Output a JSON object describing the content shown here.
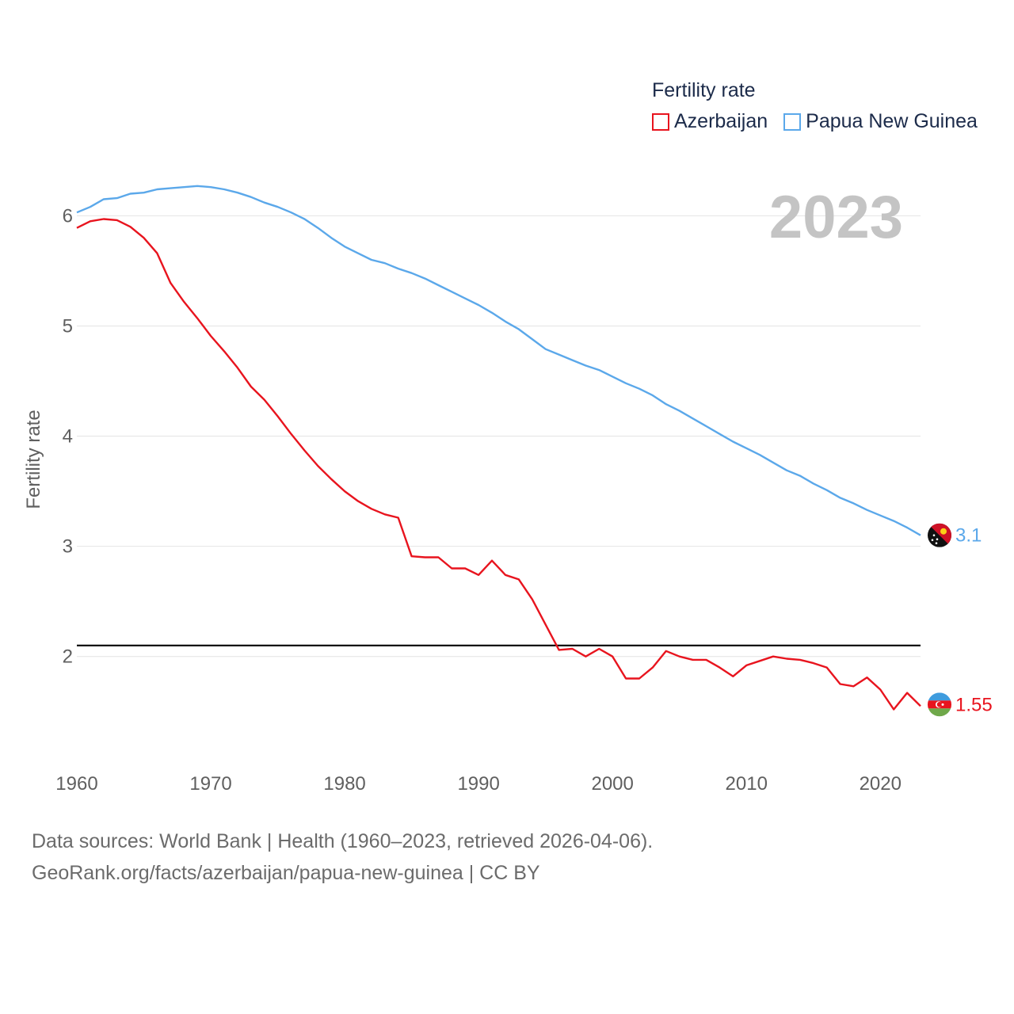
{
  "chart_data": {
    "type": "line",
    "title": "Fertility rate",
    "ylabel": "Fertility rate",
    "xlabel": "",
    "current_year_label": "2023",
    "xlim": [
      1960,
      2023
    ],
    "ylim": [
      1.2,
      6.7
    ],
    "x_ticks": [
      1960,
      1970,
      1980,
      1990,
      2000,
      2010,
      2020
    ],
    "x_tick_labels": [
      "1960",
      "1970",
      "1980",
      "1990",
      "2000",
      "2010",
      "2020"
    ],
    "y_ticks": [
      2,
      3,
      4,
      5,
      6
    ],
    "y_tick_labels": [
      "2",
      "3",
      "4",
      "5",
      "6"
    ],
    "reference_line": {
      "value": 2.1,
      "color": "#000000"
    },
    "x": [
      1960,
      1961,
      1962,
      1963,
      1964,
      1965,
      1966,
      1967,
      1968,
      1969,
      1970,
      1971,
      1972,
      1973,
      1974,
      1975,
      1976,
      1977,
      1978,
      1979,
      1980,
      1981,
      1982,
      1983,
      1984,
      1985,
      1986,
      1987,
      1988,
      1989,
      1990,
      1991,
      1992,
      1993,
      1994,
      1995,
      1996,
      1997,
      1998,
      1999,
      2000,
      2001,
      2002,
      2003,
      2004,
      2005,
      2006,
      2007,
      2008,
      2009,
      2010,
      2011,
      2012,
      2013,
      2014,
      2015,
      2016,
      2017,
      2018,
      2019,
      2020,
      2021,
      2022,
      2023
    ],
    "series": [
      {
        "name": "Azerbaijan",
        "color": "#e8141e",
        "end_label": "1.55",
        "flag_icon": "azerbaijan-flag-icon",
        "values": [
          5.89,
          5.95,
          5.97,
          5.96,
          5.9,
          5.8,
          5.66,
          5.39,
          5.22,
          5.07,
          4.91,
          4.77,
          4.62,
          4.45,
          4.33,
          4.18,
          4.02,
          3.87,
          3.73,
          3.61,
          3.5,
          3.41,
          3.34,
          3.29,
          3.26,
          2.91,
          2.9,
          2.9,
          2.8,
          2.8,
          2.74,
          2.87,
          2.74,
          2.7,
          2.52,
          2.29,
          2.06,
          2.07,
          2.0,
          2.07,
          2.0,
          1.8,
          1.8,
          1.9,
          2.05,
          2.0,
          1.97,
          1.97,
          1.9,
          1.82,
          1.92,
          1.96,
          2.0,
          1.98,
          1.97,
          1.94,
          1.9,
          1.75,
          1.73,
          1.81,
          1.7,
          1.52,
          1.67,
          1.55
        ]
      },
      {
        "name": "Papua New Guinea",
        "color": "#5ba8ea",
        "end_label": "3.1",
        "flag_icon": "papua-new-guinea-flag-icon",
        "values": [
          6.03,
          6.08,
          6.15,
          6.16,
          6.2,
          6.21,
          6.24,
          6.25,
          6.26,
          6.27,
          6.26,
          6.24,
          6.21,
          6.17,
          6.12,
          6.08,
          6.03,
          5.97,
          5.89,
          5.8,
          5.72,
          5.66,
          5.6,
          5.57,
          5.52,
          5.48,
          5.43,
          5.37,
          5.31,
          5.25,
          5.19,
          5.12,
          5.04,
          4.97,
          4.88,
          4.79,
          4.74,
          4.69,
          4.64,
          4.6,
          4.54,
          4.48,
          4.43,
          4.37,
          4.29,
          4.23,
          4.16,
          4.09,
          4.02,
          3.95,
          3.89,
          3.83,
          3.76,
          3.69,
          3.64,
          3.57,
          3.51,
          3.44,
          3.39,
          3.33,
          3.28,
          3.23,
          3.17,
          3.1
        ]
      }
    ]
  },
  "footer": {
    "line1": "Data sources: World Bank | Health (1960–2023, retrieved 2026-04-06).",
    "line2": "GeoRank.org/facts/azerbaijan/papua-new-guinea | CC BY"
  }
}
